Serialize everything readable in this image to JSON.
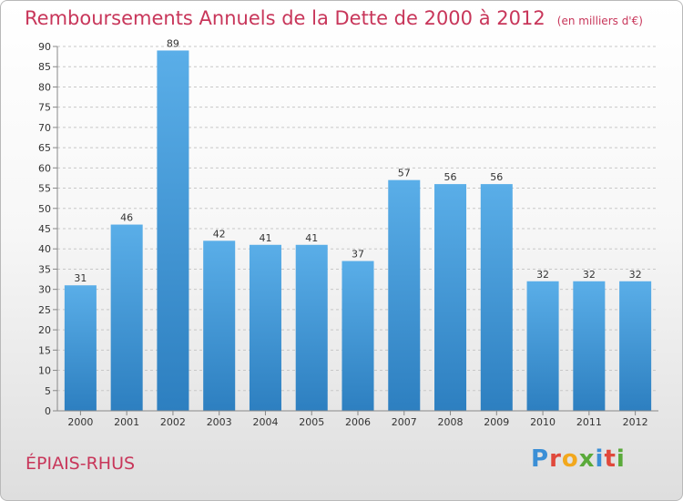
{
  "header": {
    "title": "Remboursements Annuels de la Dette de 2000 à 2012",
    "unit": "(en milliers d'€)"
  },
  "footer": {
    "commune": "ÉPIAIS-RHUS",
    "logo": [
      "P",
      "r",
      "o",
      "x",
      "i",
      "t",
      "i"
    ]
  },
  "chart_data": {
    "type": "bar",
    "categories": [
      "2000",
      "2001",
      "2002",
      "2003",
      "2004",
      "2005",
      "2006",
      "2007",
      "2008",
      "2009",
      "2010",
      "2011",
      "2012"
    ],
    "values": [
      31,
      46,
      89,
      42,
      41,
      41,
      37,
      57,
      56,
      56,
      32,
      32,
      32
    ],
    "ylim": [
      0,
      90
    ],
    "yticks": [
      0,
      5,
      10,
      15,
      20,
      25,
      30,
      35,
      40,
      45,
      50,
      55,
      60,
      65,
      70,
      75,
      80,
      85,
      90
    ],
    "grid": true,
    "bar_color_top": "#5aaee8",
    "bar_color_bottom": "#2d7fc0"
  }
}
